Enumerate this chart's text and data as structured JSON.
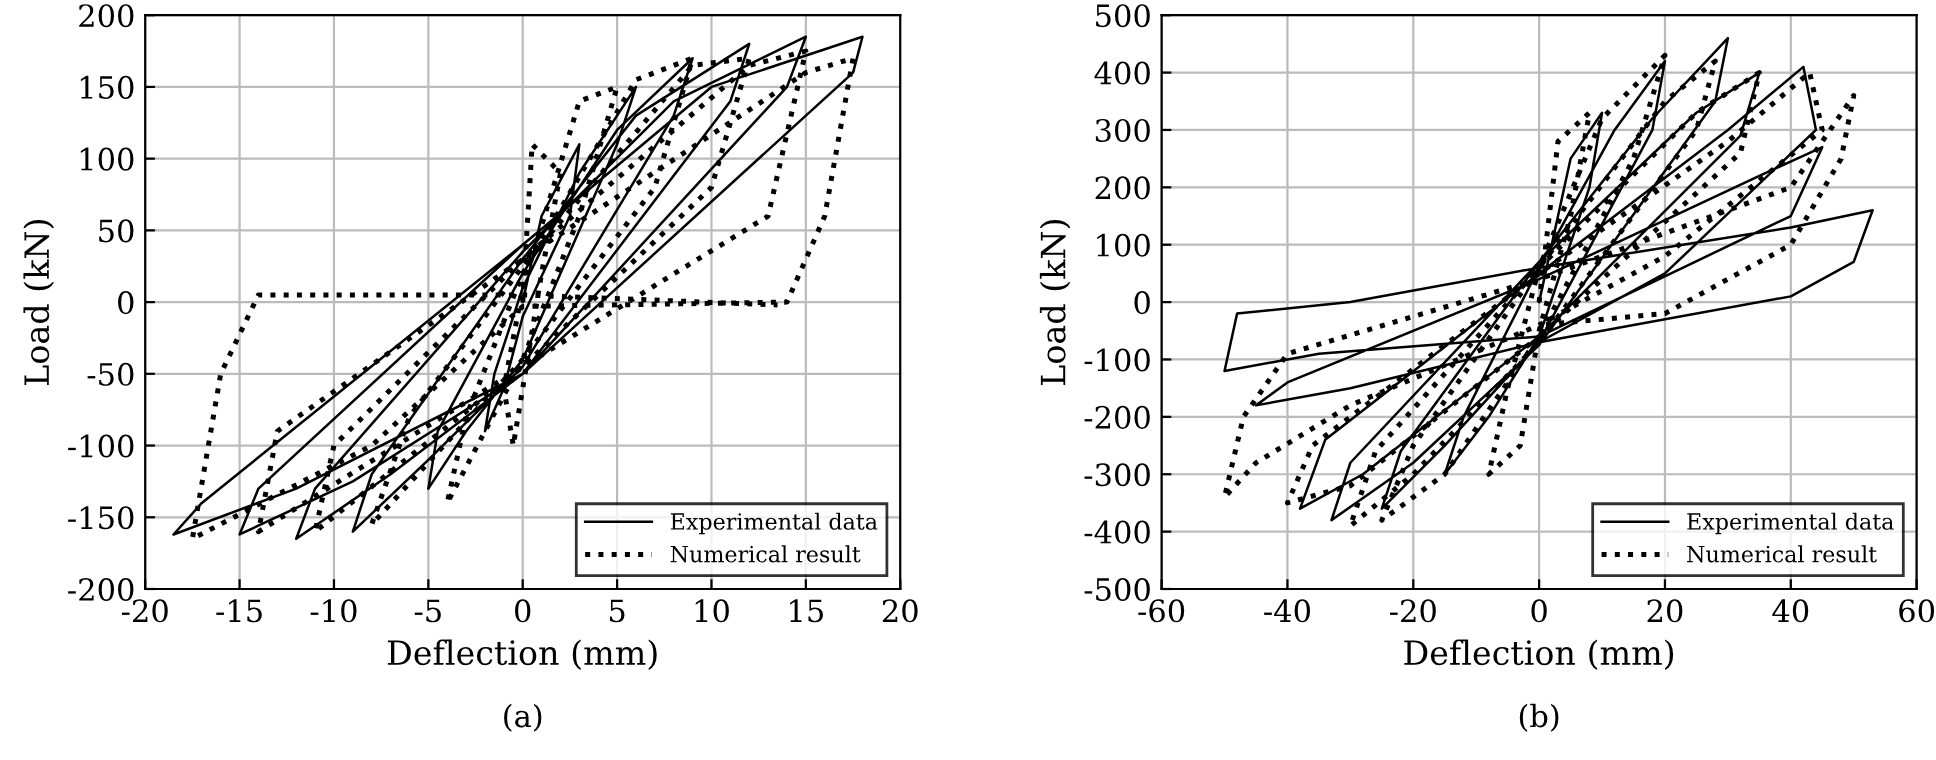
{
  "chart_data": [
    {
      "type": "line",
      "xlabel": "Deflection (mm)",
      "ylabel": "Load (kN)",
      "annotations": [
        "(a)"
      ],
      "xlim": [
        -20,
        20
      ],
      "ylim": [
        -200,
        200
      ],
      "xticks": [
        -20,
        -15,
        -10,
        -5,
        0,
        5,
        10,
        15,
        20
      ],
      "yticks": [
        -200,
        -150,
        -100,
        -50,
        0,
        50,
        100,
        150,
        200
      ],
      "grid": true,
      "legend": "bottom right",
      "marker": "none",
      "series": [
        {
          "name": "Experimental data",
          "color": "#000000",
          "line_style": "solid",
          "x": [
            0,
            1,
            3,
            2.5,
            0,
            -1,
            -2,
            -1.5,
            0,
            3,
            6,
            5,
            0,
            -3,
            -5,
            -4.5,
            0,
            5,
            9,
            8,
            0,
            -5,
            -9,
            -8,
            0,
            6,
            12,
            11,
            0,
            -7,
            -12,
            -11,
            0,
            8,
            15,
            14,
            0,
            -9,
            -15,
            -14,
            0,
            10,
            18,
            17.5,
            0,
            -12,
            -18.5,
            -17,
            0
          ],
          "values": [
            0,
            60,
            110,
            60,
            -10,
            -60,
            -90,
            -50,
            10,
            90,
            150,
            110,
            -40,
            -90,
            -130,
            -90,
            20,
            120,
            170,
            130,
            -45,
            -110,
            -160,
            -120,
            30,
            130,
            180,
            140,
            -50,
            -120,
            -165,
            -130,
            35,
            140,
            185,
            150,
            -50,
            -125,
            -162,
            -130,
            40,
            150,
            185,
            160,
            -50,
            -130,
            -162,
            -140,
            40
          ]
        },
        {
          "name": "Numerical result",
          "color": "#000000",
          "line_style": "dotted",
          "x": [
            0,
            0.5,
            2,
            1,
            -0.5,
            -1,
            0,
            3,
            5,
            3,
            0,
            -4,
            -3,
            0,
            6,
            9,
            7,
            0,
            -8,
            -6,
            0,
            9,
            12,
            10,
            0,
            -11,
            -10,
            0,
            12,
            15,
            13,
            0,
            -14,
            -13,
            0,
            15,
            17.5,
            16,
            14,
            0,
            -8,
            -17.5,
            -16,
            -14,
            0,
            13.5
          ],
          "values": [
            0,
            110,
            90,
            20,
            -100,
            -60,
            10,
            140,
            150,
            60,
            -40,
            -140,
            -80,
            20,
            155,
            170,
            80,
            -40,
            -155,
            -80,
            25,
            165,
            170,
            80,
            -45,
            -160,
            -100,
            30,
            165,
            175,
            60,
            -45,
            -160,
            -90,
            30,
            160,
            170,
            60,
            0,
            -3,
            -100,
            -165,
            -50,
            5,
            5,
            -2
          ]
        }
      ]
    },
    {
      "type": "line",
      "xlabel": "Deflection (mm)",
      "ylabel": "Load (kN)",
      "annotations": [
        "(b)"
      ],
      "xlim": [
        -60,
        60
      ],
      "ylim": [
        -500,
        500
      ],
      "xticks": [
        -60,
        -40,
        -20,
        0,
        20,
        40,
        60
      ],
      "yticks": [
        -500,
        -400,
        -300,
        -200,
        -100,
        0,
        100,
        200,
        300,
        400,
        500
      ],
      "grid": true,
      "legend": "bottom right",
      "marker": "none",
      "series": [
        {
          "name": "Experimental data",
          "color": "#000000",
          "line_style": "solid",
          "x": [
            0,
            5,
            10,
            8,
            0,
            -8,
            -15,
            -12,
            0,
            12,
            20,
            18,
            0,
            -15,
            -25,
            -22,
            0,
            18,
            30,
            28,
            0,
            -20,
            -33,
            -30,
            0,
            25,
            35,
            32,
            0,
            -28,
            -38,
            -34,
            0,
            30,
            42,
            44,
            20,
            0,
            -30,
            -45,
            -40,
            0,
            35,
            45,
            40,
            0,
            -35,
            -50,
            -48,
            -30,
            0,
            40,
            53,
            50,
            40,
            0
          ],
          "values": [
            0,
            250,
            330,
            200,
            -60,
            -200,
            -300,
            -200,
            60,
            300,
            420,
            300,
            -70,
            -250,
            -360,
            -260,
            70,
            320,
            460,
            350,
            -75,
            -280,
            -380,
            -280,
            70,
            330,
            400,
            290,
            -60,
            -300,
            -360,
            -240,
            50,
            300,
            410,
            300,
            50,
            -70,
            -150,
            -180,
            -140,
            40,
            220,
            270,
            150,
            -60,
            -90,
            -120,
            -20,
            0,
            60,
            130,
            160,
            70,
            10,
            -70
          ]
        },
        {
          "name": "Numerical result",
          "color": "#000000",
          "line_style": "dotted",
          "x": [
            0,
            3,
            8,
            5,
            0,
            -3,
            -8,
            -5,
            0,
            10,
            20,
            15,
            0,
            -15,
            -25,
            -20,
            0,
            20,
            28,
            25,
            0,
            -20,
            -30,
            -26,
            0,
            25,
            35,
            32,
            0,
            -30,
            -40,
            -36,
            0,
            30,
            43,
            45,
            20,
            0,
            -30,
            -45,
            -50,
            -47,
            -40,
            0,
            40,
            50,
            48,
            40,
            20,
            0
          ],
          "values": [
            0,
            280,
            330,
            150,
            -50,
            -250,
            -300,
            -150,
            60,
            320,
            430,
            250,
            -60,
            -300,
            -380,
            -250,
            60,
            350,
            420,
            300,
            -70,
            -300,
            -390,
            -260,
            60,
            330,
            400,
            260,
            -60,
            -320,
            -350,
            -250,
            50,
            280,
            400,
            300,
            80,
            -40,
            -180,
            -280,
            -340,
            -200,
            -90,
            40,
            200,
            360,
            250,
            100,
            -20,
            -40
          ]
        }
      ]
    }
  ]
}
